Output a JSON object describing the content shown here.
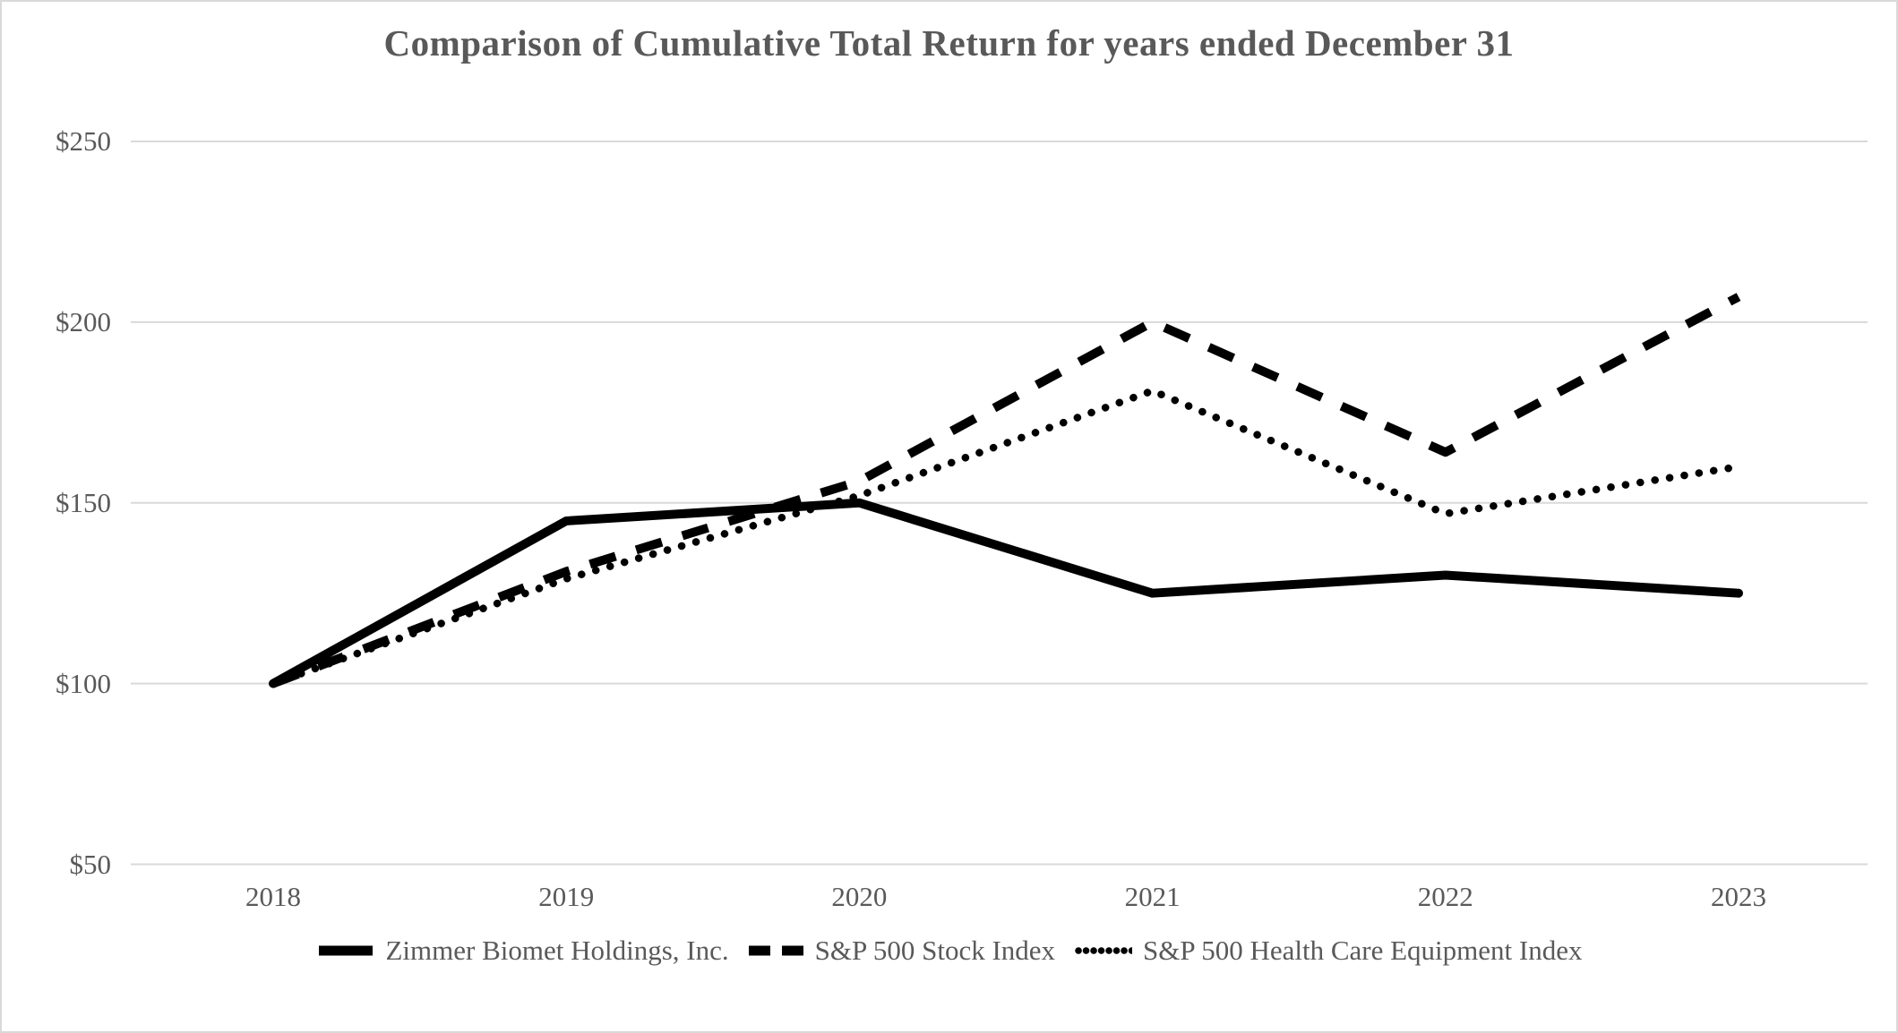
{
  "title": "Comparison of Cumulative Total Return for years ended December 31",
  "colors": {
    "line": "#000000",
    "text": "#595959",
    "grid": "#d9d9d9",
    "background": "#ffffff"
  },
  "chart_data": {
    "type": "line",
    "title": "Comparison of Cumulative Total Return for years ended December 31",
    "x_labels": [
      "2018",
      "2019",
      "2020",
      "2021",
      "2022",
      "2023"
    ],
    "series": [
      {
        "name": "Zimmer Biomet Holdings, Inc.",
        "style": "solid",
        "values": [
          100,
          145,
          150,
          125,
          130,
          125
        ]
      },
      {
        "name": "S&P 500 Stock Index",
        "style": "dashed",
        "values": [
          100,
          131,
          156,
          200,
          164,
          207
        ]
      },
      {
        "name": "S&P 500 Health Care Equipment Index",
        "style": "dotted",
        "values": [
          100,
          129,
          152,
          181,
          147,
          160
        ]
      }
    ],
    "y_ticks": [
      {
        "label": "$250",
        "value": 250
      },
      {
        "label": "$200",
        "value": 200
      },
      {
        "label": "$150",
        "value": 150
      },
      {
        "label": "$100",
        "value": 100
      },
      {
        "label": "$50",
        "value": 50
      }
    ],
    "ylim": [
      50,
      250
    ],
    "xlabel": "",
    "ylabel": "",
    "grid": "horizontal-only",
    "legend_position": "bottom"
  }
}
